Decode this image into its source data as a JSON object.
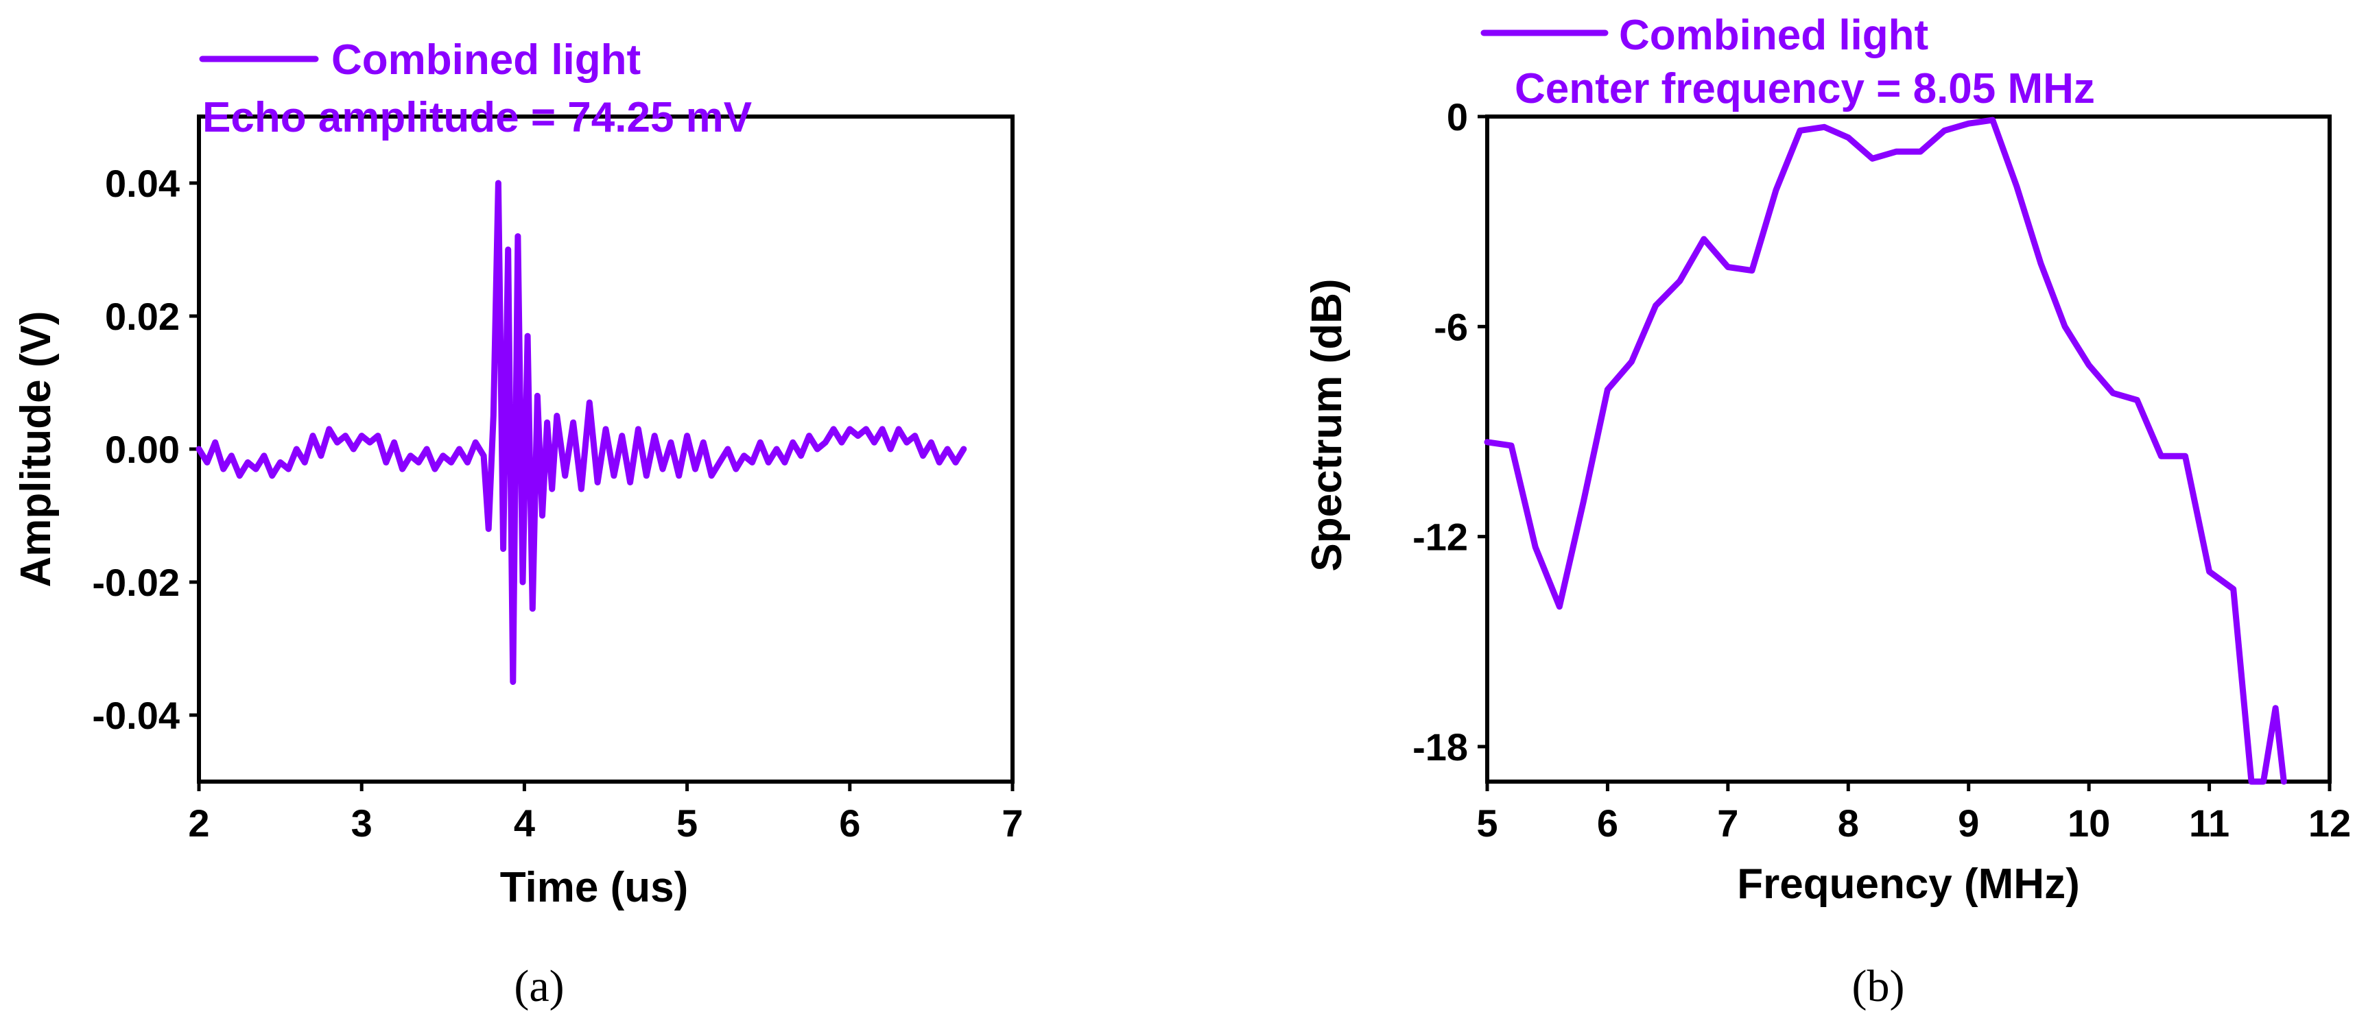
{
  "colors": {
    "series": "#8a00ff",
    "axis": "#000000"
  },
  "chart_data": [
    {
      "type": "line",
      "panel_label": "(a)",
      "title": "",
      "xlabel": "Time (us)",
      "ylabel": "Amplitude (V)",
      "xlim": [
        2,
        7
      ],
      "ylim": [
        -0.05,
        0.05
      ],
      "x_ticks": [
        2,
        3,
        4,
        5,
        6,
        7
      ],
      "x_tick_labels": [
        "2",
        "3",
        "4",
        "5",
        "6",
        "7"
      ],
      "y_ticks": [
        -0.04,
        -0.02,
        0.0,
        0.02,
        0.04
      ],
      "y_tick_labels": [
        "-0.04",
        "-0.02",
        "0.00",
        "0.02",
        "0.04"
      ],
      "grid": false,
      "legend": {
        "position": "top-left",
        "entries": [
          "Combined light"
        ]
      },
      "annotation": "Echo amplitude = 74.25 mV",
      "series": [
        {
          "name": "Combined light",
          "x": [
            2.0,
            2.05,
            2.1,
            2.15,
            2.2,
            2.25,
            2.3,
            2.35,
            2.4,
            2.45,
            2.5,
            2.55,
            2.6,
            2.65,
            2.7,
            2.75,
            2.8,
            2.85,
            2.9,
            2.95,
            3.0,
            3.05,
            3.1,
            3.15,
            3.2,
            3.25,
            3.3,
            3.35,
            3.4,
            3.45,
            3.5,
            3.55,
            3.6,
            3.65,
            3.7,
            3.75,
            3.78,
            3.81,
            3.84,
            3.87,
            3.9,
            3.93,
            3.96,
            3.99,
            4.02,
            4.05,
            4.08,
            4.11,
            4.14,
            4.17,
            4.2,
            4.25,
            4.3,
            4.35,
            4.4,
            4.45,
            4.5,
            4.55,
            4.6,
            4.65,
            4.7,
            4.75,
            4.8,
            4.85,
            4.9,
            4.95,
            5.0,
            5.05,
            5.1,
            5.15,
            5.2,
            5.25,
            5.3,
            5.35,
            5.4,
            5.45,
            5.5,
            5.55,
            5.6,
            5.65,
            5.7,
            5.75,
            5.8,
            5.85,
            5.9,
            5.95,
            6.0,
            6.05,
            6.1,
            6.15,
            6.2,
            6.25,
            6.3,
            6.35,
            6.4,
            6.45,
            6.5,
            6.55,
            6.6,
            6.65,
            6.7
          ],
          "y": [
            0.0,
            -0.002,
            0.001,
            -0.003,
            -0.001,
            -0.004,
            -0.002,
            -0.003,
            -0.001,
            -0.004,
            -0.002,
            -0.003,
            0.0,
            -0.002,
            0.002,
            -0.001,
            0.003,
            0.001,
            0.002,
            0.0,
            0.002,
            0.001,
            0.002,
            -0.002,
            0.001,
            -0.003,
            -0.001,
            -0.002,
            0.0,
            -0.003,
            -0.001,
            -0.002,
            0.0,
            -0.002,
            0.001,
            -0.001,
            -0.012,
            0.005,
            0.04,
            -0.015,
            0.03,
            -0.035,
            0.032,
            -0.02,
            0.017,
            -0.024,
            0.008,
            -0.01,
            0.004,
            -0.006,
            0.005,
            -0.004,
            0.004,
            -0.006,
            0.007,
            -0.005,
            0.003,
            -0.004,
            0.002,
            -0.005,
            0.003,
            -0.004,
            0.002,
            -0.003,
            0.001,
            -0.004,
            0.002,
            -0.003,
            0.001,
            -0.004,
            -0.002,
            0.0,
            -0.003,
            -0.001,
            -0.002,
            0.001,
            -0.002,
            0.0,
            -0.002,
            0.001,
            -0.001,
            0.002,
            0.0,
            0.001,
            0.003,
            0.001,
            0.003,
            0.002,
            0.003,
            0.001,
            0.003,
            0.0,
            0.003,
            0.001,
            0.002,
            -0.001,
            0.001,
            -0.002,
            0.0,
            -0.002,
            0.0
          ]
        }
      ]
    },
    {
      "type": "line",
      "panel_label": "(b)",
      "title": "",
      "xlabel": "Frequency (MHz)",
      "ylabel": "Spectrum (dB)",
      "xlim": [
        5,
        12
      ],
      "ylim": [
        -19,
        0
      ],
      "x_ticks": [
        5,
        6,
        7,
        8,
        9,
        10,
        11,
        12
      ],
      "x_tick_labels": [
        "5",
        "6",
        "7",
        "8",
        "9",
        "10",
        "11",
        "12"
      ],
      "y_ticks": [
        0,
        -6,
        -12,
        -18
      ],
      "y_tick_labels": [
        "0",
        "-6",
        "-12",
        "-18"
      ],
      "grid": false,
      "legend": {
        "position": "top-left",
        "entries": [
          "Combined light"
        ]
      },
      "annotation": "Center frequency = 8.05 MHz",
      "series": [
        {
          "name": "Combined light",
          "x": [
            5.0,
            5.2,
            5.4,
            5.6,
            5.8,
            6.0,
            6.2,
            6.4,
            6.6,
            6.8,
            7.0,
            7.2,
            7.4,
            7.6,
            7.8,
            8.0,
            8.2,
            8.4,
            8.6,
            8.8,
            9.0,
            9.2,
            9.4,
            9.6,
            9.8,
            10.0,
            10.2,
            10.4,
            10.6,
            10.8,
            11.0,
            11.2,
            11.35,
            11.45,
            11.55,
            11.62
          ],
          "y": [
            -9.3,
            -9.4,
            -12.3,
            -14.0,
            -11.0,
            -7.8,
            -7.0,
            -5.4,
            -4.7,
            -3.5,
            -4.3,
            -4.4,
            -2.1,
            -0.4,
            -0.3,
            -0.6,
            -1.2,
            -1.0,
            -1.0,
            -0.4,
            -0.2,
            -0.1,
            -2.0,
            -4.2,
            -6.0,
            -7.1,
            -7.9,
            -8.1,
            -9.7,
            -9.7,
            -13.0,
            -13.5,
            -19.0,
            -19.0,
            -16.9,
            -19.0
          ]
        }
      ]
    }
  ]
}
